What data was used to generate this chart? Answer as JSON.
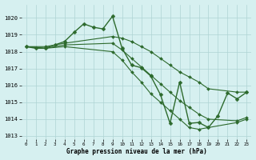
{
  "bg_color": "#d6f0f0",
  "grid_color": "#aed4d4",
  "line_color": "#2d6a2d",
  "marker_color": "#2d6a2d",
  "xlabel": "Graphe pression niveau de la mer (hPa)",
  "xlim": [
    -0.5,
    23.5
  ],
  "ylim": [
    1012.8,
    1020.8
  ],
  "yticks": [
    1013,
    1014,
    1015,
    1016,
    1017,
    1018,
    1019,
    1020
  ],
  "xticks": [
    0,
    1,
    2,
    3,
    4,
    5,
    6,
    7,
    8,
    9,
    10,
    11,
    12,
    13,
    14,
    15,
    16,
    17,
    18,
    19,
    20,
    21,
    22,
    23
  ],
  "series": [
    {
      "x": [
        0,
        1,
        2,
        3,
        4,
        5,
        6,
        7,
        8,
        9,
        10,
        11,
        12,
        13,
        14,
        15,
        16,
        17,
        18,
        19,
        20,
        21,
        22,
        23
      ],
      "y": [
        1018.3,
        1018.2,
        1018.2,
        1018.4,
        1018.6,
        1019.15,
        1019.65,
        1019.45,
        1019.35,
        1020.1,
        1018.2,
        1017.2,
        1017.05,
        1016.55,
        1015.45,
        1013.75,
        1016.2,
        1013.75,
        1013.8,
        1013.5,
        1014.2,
        1015.55,
        1015.2,
        1015.6
      ],
      "marker": "D",
      "markersize": 2.5,
      "linewidth": 1.0,
      "markevery": 1
    },
    {
      "x": [
        0,
        2,
        4,
        9,
        10,
        11,
        12,
        13,
        14,
        15,
        16,
        17,
        18,
        19,
        22,
        23
      ],
      "y": [
        1018.3,
        1018.3,
        1018.5,
        1018.9,
        1018.8,
        1018.6,
        1018.3,
        1018.0,
        1017.6,
        1017.2,
        1016.8,
        1016.5,
        1016.2,
        1015.8,
        1015.6,
        1015.6
      ],
      "marker": "D",
      "markersize": 2.0,
      "linewidth": 0.8,
      "markevery": 1
    },
    {
      "x": [
        0,
        2,
        4,
        9,
        10,
        11,
        12,
        13,
        14,
        15,
        16,
        17,
        18,
        19,
        22,
        23
      ],
      "y": [
        1018.3,
        1018.2,
        1018.4,
        1018.5,
        1018.1,
        1017.6,
        1017.1,
        1016.6,
        1016.1,
        1015.6,
        1015.1,
        1014.7,
        1014.3,
        1014.0,
        1013.9,
        1014.1
      ],
      "marker": "D",
      "markersize": 2.0,
      "linewidth": 0.8,
      "markevery": 1
    },
    {
      "x": [
        0,
        2,
        4,
        9,
        10,
        11,
        12,
        13,
        14,
        15,
        16,
        17,
        18,
        19,
        22,
        23
      ],
      "y": [
        1018.3,
        1018.2,
        1018.3,
        1018.0,
        1017.5,
        1016.8,
        1016.2,
        1015.5,
        1015.0,
        1014.5,
        1014.0,
        1013.5,
        1013.4,
        1013.5,
        1013.8,
        1014.0
      ],
      "marker": "D",
      "markersize": 2.0,
      "linewidth": 0.8,
      "markevery": 1
    }
  ]
}
